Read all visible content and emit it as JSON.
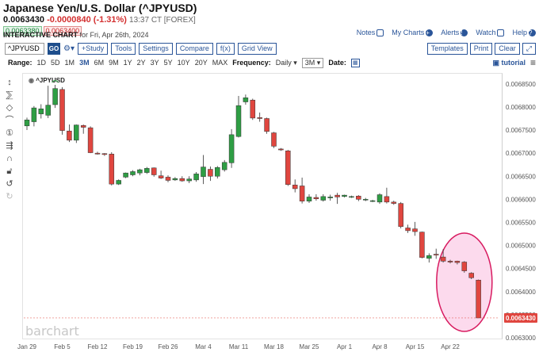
{
  "header": {
    "title": "Japanese Yen/U.S. Dollar (^JPYUSD)",
    "price": "0.0063430",
    "change": "-0.0000840 (-1.31%)",
    "time": "13:37 CT [FOREX]",
    "bid": "0.0063380",
    "ask": "0.0063400",
    "interactive_label": "INTERACTIVE CHART",
    "interactive_date": "for Fri, Apr 26th, 2024"
  },
  "top_links": {
    "notes": "Notes",
    "my_charts": "My Charts",
    "alerts": "Alerts",
    "watch": "Watch",
    "help": "Help"
  },
  "toolbar": {
    "symbol_value": "^JPYUSD",
    "go": "GO",
    "study": "+Study",
    "tools": "Tools",
    "settings": "Settings",
    "compare": "Compare",
    "fx": "f(x)",
    "grid_view": "Grid View",
    "templates": "Templates",
    "print": "Print",
    "clear": "Clear"
  },
  "range": {
    "label": "Range:",
    "items": [
      "1D",
      "5D",
      "1M",
      "3M",
      "6M",
      "9M",
      "1Y",
      "2Y",
      "3Y",
      "5Y",
      "10Y",
      "20Y",
      "MAX"
    ],
    "active": "3M",
    "frequency_label": "Frequency:",
    "frequency_value": "Daily",
    "period_value": "3M",
    "date_label": "Date:",
    "tutorial": "tutorial"
  },
  "chart_symbol": "^JPYUSD",
  "watermark": "barchart",
  "last_price_label": "0.0063430",
  "colors": {
    "up": "#2e9e44",
    "down": "#e0463f",
    "highlight_circle": "#d81b60",
    "highlight_fill": "#fbd3ea",
    "link": "#2a5599"
  },
  "chart_data": {
    "type": "candlestick",
    "ylim": [
      0.0063,
      0.00686
    ],
    "y_ticks": [
      "0.0068500",
      "0.0068000",
      "0.0067500",
      "0.0067000",
      "0.0066500",
      "0.0066000",
      "0.0065500",
      "0.0065000",
      "0.0064500",
      "0.0064000",
      "0.0063500",
      "0.0063000"
    ],
    "y_tick_values": [
      0.00685,
      0.0068,
      0.00675,
      0.0067,
      0.00665,
      0.0066,
      0.00655,
      0.0065,
      0.00645,
      0.0064,
      0.00635,
      0.0063
    ],
    "x_labels": [
      "Jan 29",
      "Feb 5",
      "Feb 12",
      "Feb 19",
      "Feb 26",
      "Mar 4",
      "Mar 11",
      "Mar 18",
      "Mar 25",
      "Apr 1",
      "Apr 8",
      "Apr 15",
      "Apr 22"
    ],
    "x_label_index": [
      0,
      5,
      10,
      15,
      20,
      25,
      30,
      35,
      40,
      45,
      50,
      55,
      60
    ],
    "candles": [
      {
        "o": 0.006759,
        "h": 0.006777,
        "l": 0.00675,
        "c": 0.006772
      },
      {
        "o": 0.006768,
        "h": 0.006802,
        "l": 0.006758,
        "c": 0.006798
      },
      {
        "o": 0.006785,
        "h": 0.006806,
        "l": 0.006775,
        "c": 0.006796
      },
      {
        "o": 0.006782,
        "h": 0.006846,
        "l": 0.006776,
        "c": 0.006804
      },
      {
        "o": 0.006805,
        "h": 0.006848,
        "l": 0.006798,
        "c": 0.00684
      },
      {
        "o": 0.006838,
        "h": 0.006843,
        "l": 0.00674,
        "c": 0.006749
      },
      {
        "o": 0.006748,
        "h": 0.006762,
        "l": 0.006724,
        "c": 0.006728
      },
      {
        "o": 0.006728,
        "h": 0.006762,
        "l": 0.006722,
        "c": 0.006761
      },
      {
        "o": 0.00676,
        "h": 0.006762,
        "l": 0.006742,
        "c": 0.006756
      },
      {
        "o": 0.006755,
        "h": 0.006758,
        "l": 0.0067,
        "c": 0.006701
      },
      {
        "o": 0.0067,
        "h": 0.006703,
        "l": 0.006697,
        "c": 0.006698
      },
      {
        "o": 0.006699,
        "h": 0.0067,
        "l": 0.006694,
        "c": 0.006697
      },
      {
        "o": 0.006698,
        "h": 0.006702,
        "l": 0.00663,
        "c": 0.006633
      },
      {
        "o": 0.006633,
        "h": 0.006643,
        "l": 0.006631,
        "c": 0.006641
      },
      {
        "o": 0.006648,
        "h": 0.006658,
        "l": 0.006646,
        "c": 0.006657
      },
      {
        "o": 0.006653,
        "h": 0.006663,
        "l": 0.00665,
        "c": 0.00666
      },
      {
        "o": 0.006657,
        "h": 0.006666,
        "l": 0.006652,
        "c": 0.006664
      },
      {
        "o": 0.006658,
        "h": 0.00667,
        "l": 0.006655,
        "c": 0.006667
      },
      {
        "o": 0.006668,
        "h": 0.006669,
        "l": 0.006649,
        "c": 0.006653
      },
      {
        "o": 0.006651,
        "h": 0.006662,
        "l": 0.006644,
        "c": 0.006646
      },
      {
        "o": 0.006648,
        "h": 0.006652,
        "l": 0.006637,
        "c": 0.006641
      },
      {
        "o": 0.006642,
        "h": 0.006648,
        "l": 0.00664,
        "c": 0.006645
      },
      {
        "o": 0.006645,
        "h": 0.00665,
        "l": 0.006638,
        "c": 0.00664
      },
      {
        "o": 0.00664,
        "h": 0.00665,
        "l": 0.006635,
        "c": 0.006644
      },
      {
        "o": 0.006642,
        "h": 0.006659,
        "l": 0.006638,
        "c": 0.006655
      },
      {
        "o": 0.006649,
        "h": 0.006696,
        "l": 0.006633,
        "c": 0.00667
      },
      {
        "o": 0.006665,
        "h": 0.006671,
        "l": 0.00664,
        "c": 0.00665
      },
      {
        "o": 0.00665,
        "h": 0.006672,
        "l": 0.006645,
        "c": 0.006669
      },
      {
        "o": 0.006664,
        "h": 0.006685,
        "l": 0.00666,
        "c": 0.00668
      },
      {
        "o": 0.006679,
        "h": 0.006752,
        "l": 0.006668,
        "c": 0.00674
      },
      {
        "o": 0.006736,
        "h": 0.006824,
        "l": 0.006734,
        "c": 0.006803
      },
      {
        "o": 0.006811,
        "h": 0.006827,
        "l": 0.006805,
        "c": 0.00682
      },
      {
        "o": 0.006815,
        "h": 0.006818,
        "l": 0.006772,
        "c": 0.006776
      },
      {
        "o": 0.006777,
        "h": 0.006788,
        "l": 0.006768,
        "c": 0.006775
      },
      {
        "o": 0.006775,
        "h": 0.006777,
        "l": 0.006742,
        "c": 0.006747
      },
      {
        "o": 0.006744,
        "h": 0.006746,
        "l": 0.006711,
        "c": 0.006715
      },
      {
        "o": 0.006709,
        "h": 0.006711,
        "l": 0.006705,
        "c": 0.006707
      },
      {
        "o": 0.006705,
        "h": 0.006707,
        "l": 0.006629,
        "c": 0.006632
      },
      {
        "o": 0.006631,
        "h": 0.006643,
        "l": 0.006615,
        "c": 0.006623
      },
      {
        "o": 0.006629,
        "h": 0.006647,
        "l": 0.006591,
        "c": 0.006596
      },
      {
        "o": 0.006596,
        "h": 0.006611,
        "l": 0.006592,
        "c": 0.006605
      },
      {
        "o": 0.006604,
        "h": 0.006611,
        "l": 0.006597,
        "c": 0.006601
      },
      {
        "o": 0.006598,
        "h": 0.006611,
        "l": 0.006595,
        "c": 0.006606
      },
      {
        "o": 0.006603,
        "h": 0.00661,
        "l": 0.006597,
        "c": 0.006605
      },
      {
        "o": 0.006609,
        "h": 0.006614,
        "l": 0.00659,
        "c": 0.006605
      },
      {
        "o": 0.006606,
        "h": 0.00661,
        "l": 0.006604,
        "c": 0.006609
      },
      {
        "o": 0.006606,
        "h": 0.006608,
        "l": 0.006603,
        "c": 0.006606
      },
      {
        "o": 0.006607,
        "h": 0.006609,
        "l": 0.006596,
        "c": 0.0066
      },
      {
        "o": 0.0066,
        "h": 0.006603,
        "l": 0.006596,
        "c": 0.0066
      },
      {
        "o": 0.006597,
        "h": 0.006599,
        "l": 0.006594,
        "c": 0.006597
      },
      {
        "o": 0.006594,
        "h": 0.006613,
        "l": 0.00659,
        "c": 0.00661
      },
      {
        "o": 0.006606,
        "h": 0.006625,
        "l": 0.006591,
        "c": 0.006594
      },
      {
        "o": 0.006594,
        "h": 0.006597,
        "l": 0.006588,
        "c": 0.006591
      },
      {
        "o": 0.006591,
        "h": 0.006594,
        "l": 0.006537,
        "c": 0.006541
      },
      {
        "o": 0.006538,
        "h": 0.006545,
        "l": 0.006527,
        "c": 0.006532
      },
      {
        "o": 0.006536,
        "h": 0.006551,
        "l": 0.006521,
        "c": 0.00653
      },
      {
        "o": 0.006529,
        "h": 0.00653,
        "l": 0.006472,
        "c": 0.006474
      },
      {
        "o": 0.006472,
        "h": 0.006483,
        "l": 0.006463,
        "c": 0.006478
      },
      {
        "o": 0.006481,
        "h": 0.006493,
        "l": 0.006471,
        "c": 0.006479
      },
      {
        "o": 0.006475,
        "h": 0.006492,
        "l": 0.006463,
        "c": 0.006466
      },
      {
        "o": 0.006466,
        "h": 0.006469,
        "l": 0.006461,
        "c": 0.006464
      },
      {
        "o": 0.006466,
        "h": 0.006467,
        "l": 0.006459,
        "c": 0.006463
      },
      {
        "o": 0.006464,
        "h": 0.006466,
        "l": 0.006441,
        "c": 0.006445
      },
      {
        "o": 0.00644,
        "h": 0.006442,
        "l": 0.006427,
        "c": 0.00643
      },
      {
        "o": 0.006425,
        "h": 0.006426,
        "l": 0.006343,
        "c": 0.006343
      }
    ]
  }
}
